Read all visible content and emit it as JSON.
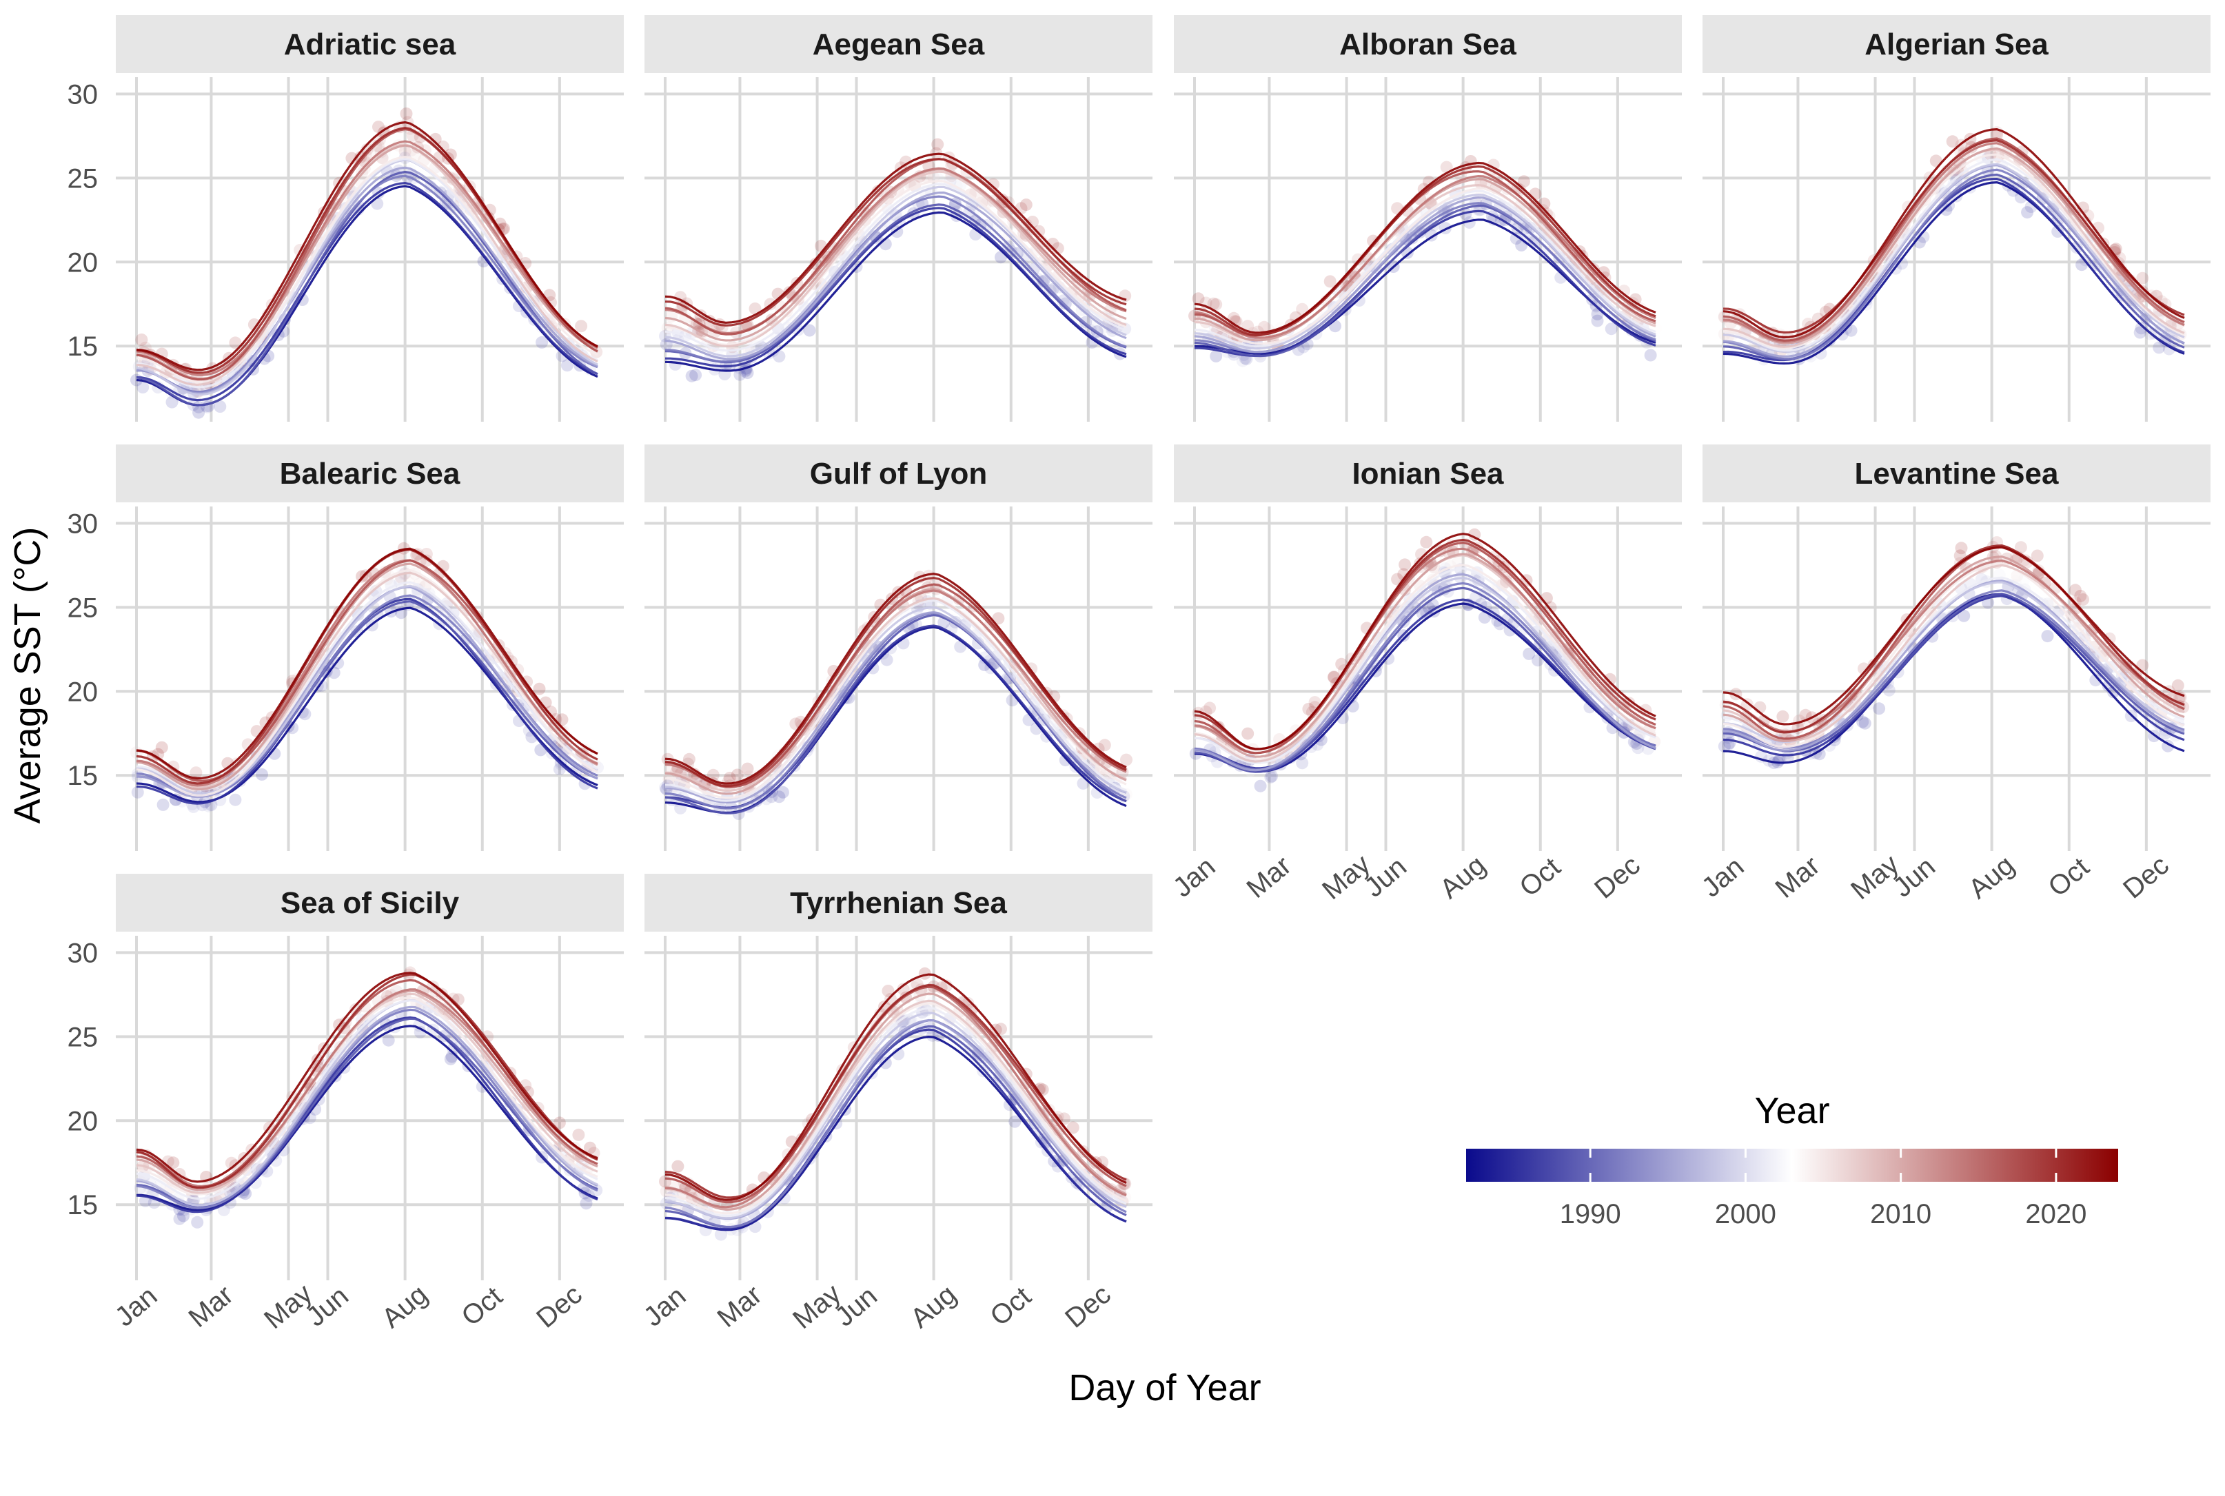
{
  "figure": {
    "xlabel": "Day of Year",
    "ylabel": "Average SST (°C)"
  },
  "legend": {
    "title": "Year",
    "labels": [
      "1990",
      "2000",
      "2010",
      "2020"
    ],
    "colors": {
      "low": "#0a0a8c",
      "mid": "#ffffff",
      "high": "#8b0000"
    }
  },
  "chart_data": {
    "type": "line",
    "facet_layout": "4 columns x 3 rows (two cells empty)",
    "x_ticks": [
      "Jan",
      "Mar",
      "May",
      "Jun",
      "Aug",
      "Oct",
      "Dec"
    ],
    "y_ticks": [
      15,
      20,
      25,
      30
    ],
    "ylim": [
      10.5,
      31
    ],
    "year_range": [
      1982,
      2024
    ],
    "facets": [
      {
        "title": "Adriatic sea",
        "winter_min": [
          11.5,
          13.6
        ],
        "summer_peak": [
          24.5,
          28.3
        ],
        "jan": [
          13.0,
          14.8
        ],
        "dec": [
          13.2,
          15.0
        ],
        "peak_day": 215,
        "y_axis_labels": true,
        "x_axis_labels": false
      },
      {
        "title": "Aegean Sea",
        "winter_min": [
          13.5,
          16.3
        ],
        "summer_peak": [
          23.0,
          26.5
        ],
        "jan": [
          14.0,
          18.0
        ],
        "dec": [
          14.3,
          17.8
        ],
        "peak_day": 220,
        "y_axis_labels": false,
        "x_axis_labels": false
      },
      {
        "title": "Alboran Sea",
        "winter_min": [
          14.3,
          15.8
        ],
        "summer_peak": [
          22.8,
          25.9
        ],
        "jan": [
          14.7,
          17.5
        ],
        "dec": [
          14.9,
          17.0
        ],
        "peak_day": 228,
        "y_axis_labels": false,
        "x_axis_labels": false
      },
      {
        "title": "Algerian Sea",
        "winter_min": [
          14.0,
          15.6
        ],
        "summer_peak": [
          24.7,
          27.8
        ],
        "jan": [
          14.6,
          17.2
        ],
        "dec": [
          14.6,
          16.8
        ],
        "peak_day": 218,
        "y_axis_labels": false,
        "x_axis_labels": false
      },
      {
        "title": "Balearic Sea",
        "winter_min": [
          13.2,
          14.8
        ],
        "summer_peak": [
          25.2,
          28.5
        ],
        "jan": [
          14.3,
          16.5
        ],
        "dec": [
          14.2,
          16.3
        ],
        "peak_day": 218,
        "y_axis_labels": true,
        "x_axis_labels": false
      },
      {
        "title": "Gulf of Lyon",
        "winter_min": [
          12.8,
          14.5
        ],
        "summer_peak": [
          23.8,
          27.0
        ],
        "jan": [
          13.4,
          16.0
        ],
        "dec": [
          13.2,
          15.5
        ],
        "peak_day": 215,
        "y_axis_labels": false,
        "x_axis_labels": false
      },
      {
        "title": "Ionian Sea",
        "winter_min": [
          15.0,
          16.7
        ],
        "summer_peak": [
          25.5,
          29.3
        ],
        "jan": [
          16.0,
          18.8
        ],
        "dec": [
          16.3,
          18.5
        ],
        "peak_day": 215,
        "y_axis_labels": false,
        "x_axis_labels": true
      },
      {
        "title": "Levantine Sea",
        "winter_min": [
          16.0,
          17.8
        ],
        "summer_peak": [
          25.5,
          28.8
        ],
        "jan": [
          16.8,
          19.8
        ],
        "dec": [
          16.8,
          19.6
        ],
        "peak_day": 222,
        "y_axis_labels": false,
        "x_axis_labels": true
      },
      {
        "title": "Sea of Sicily",
        "winter_min": [
          14.5,
          16.4
        ],
        "summer_peak": [
          25.8,
          28.7
        ],
        "jan": [
          15.5,
          18.5
        ],
        "dec": [
          15.3,
          18.0
        ],
        "peak_day": 220,
        "y_axis_labels": true,
        "x_axis_labels": true
      },
      {
        "title": "Tyrrhenian Sea",
        "winter_min": [
          13.5,
          15.3
        ],
        "summer_peak": [
          25.0,
          28.7
        ],
        "jan": [
          14.2,
          16.8
        ],
        "dec": [
          14.0,
          16.3
        ],
        "peak_day": 212,
        "y_axis_labels": false,
        "x_axis_labels": true
      }
    ]
  }
}
